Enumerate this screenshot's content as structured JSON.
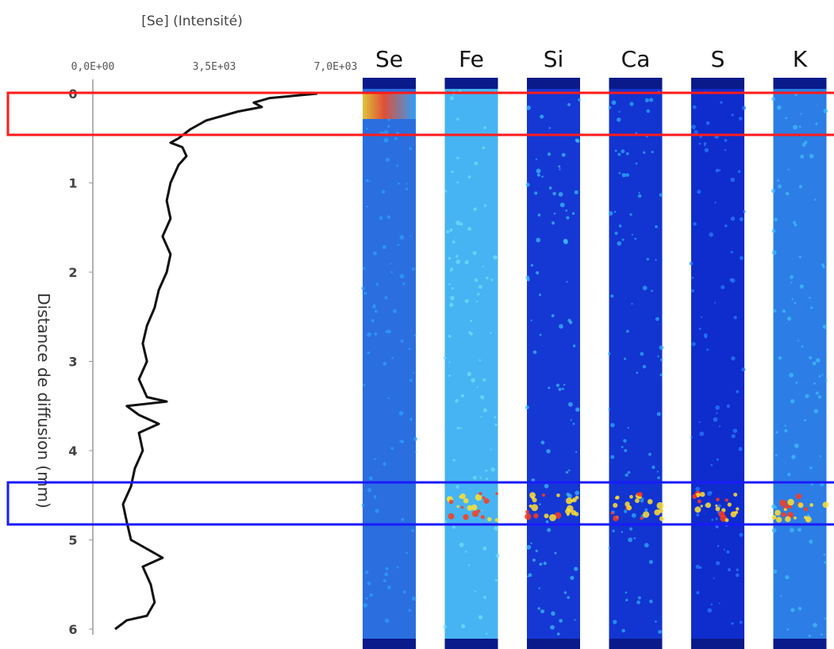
{
  "chart_data": {
    "type": "line",
    "x_label": "[Se] (Intensité)",
    "y_label": "Distance de diffusion (mm)",
    "color": "#111111",
    "xlim": [
      0,
      7000
    ],
    "xticks": [
      {
        "value": 0,
        "label": "0,0E+00"
      },
      {
        "value": 3500,
        "label": "3,5E+03"
      },
      {
        "value": 7000,
        "label": "7,0E+03"
      }
    ],
    "ylim": [
      0,
      6
    ],
    "y_inverted": true,
    "yticks": [
      0,
      1,
      2,
      3,
      4,
      5,
      6
    ],
    "y": [
      0,
      0.05,
      0.1,
      0.15,
      0.2,
      0.3,
      0.4,
      0.5,
      0.55,
      0.6,
      0.7,
      0.8,
      1.0,
      1.2,
      1.4,
      1.6,
      1.8,
      2.0,
      2.2,
      2.4,
      2.6,
      2.8,
      3.0,
      3.2,
      3.4,
      3.45,
      3.5,
      3.6,
      3.7,
      3.8,
      4.0,
      4.2,
      4.4,
      4.6,
      4.8,
      5.0,
      5.1,
      5.2,
      5.3,
      5.5,
      5.7,
      5.85,
      5.9,
      6.0
    ],
    "values": [
      6470,
      5100,
      4640,
      4870,
      4190,
      3270,
      2810,
      2470,
      2240,
      2580,
      2700,
      2470,
      2240,
      2130,
      2240,
      2010,
      2240,
      2130,
      1900,
      1780,
      1560,
      1440,
      1560,
      1330,
      1560,
      2130,
      980,
      1330,
      1900,
      1330,
      1440,
      1210,
      1100,
      870,
      980,
      1100,
      1560,
      2010,
      1440,
      1670,
      1780,
      1560,
      980,
      640
    ]
  },
  "element_maps": [
    "Se",
    "Fe",
    "Si",
    "Ca",
    "S",
    "K"
  ]
}
